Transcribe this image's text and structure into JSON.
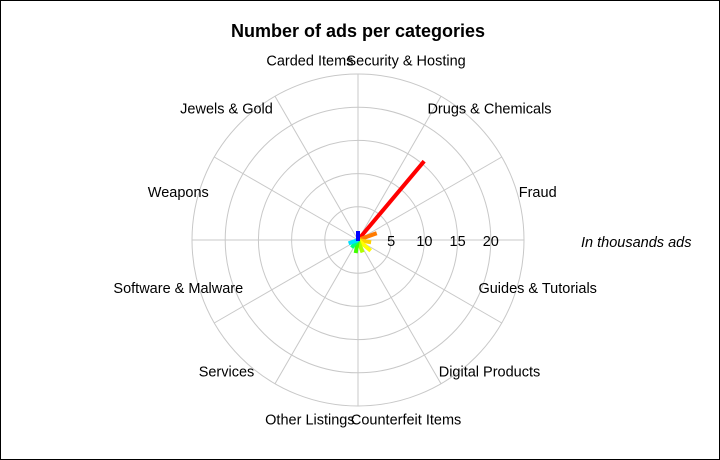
{
  "chart_data": {
    "type": "radial-bar",
    "title": "Number of ads per categories",
    "unit_label": "In thousands ads",
    "radial_ticks": [
      "5",
      "10",
      "15",
      "20"
    ],
    "rlim": [
      0,
      25
    ],
    "grid": true,
    "categories": [
      "Weapons",
      "Jewels & Gold",
      "Carded Items",
      "Security & Hosting",
      "Drugs & Chemicals",
      "Fraud",
      "Guides & Tutorials",
      "Digital Products",
      "Counterfeit Items",
      "Other Listings",
      "Services",
      "Software & Malware"
    ],
    "values": [
      0.1,
      0.1,
      0.2,
      0.2,
      15.5,
      3.0,
      2.0,
      2.5,
      2.0,
      2.0,
      1.5,
      1.5
    ],
    "colors": [
      "#5b3cff",
      "#0050ff",
      "#0080ff",
      "#00b0ff",
      "#ff0000",
      "#ff7a00",
      "#ffd000",
      "#ffff00",
      "#b0ff00",
      "#40ff00",
      "#00ff80",
      "#00e0ff"
    ],
    "center_marker_color": "#0000ff"
  }
}
